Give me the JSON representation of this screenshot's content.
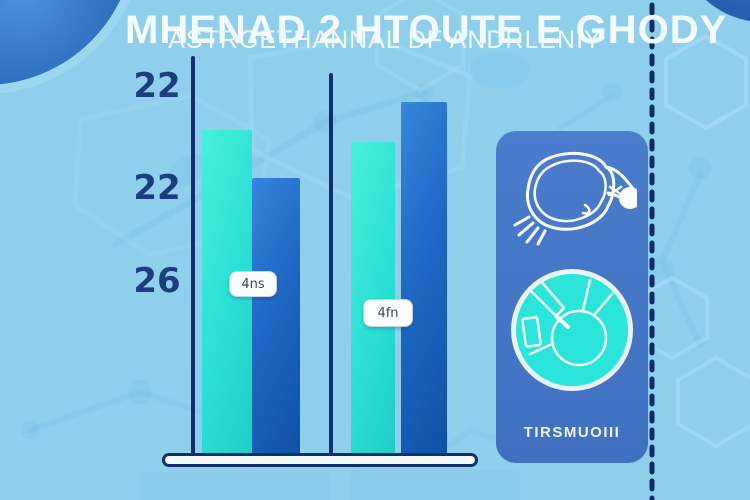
{
  "header": {
    "title": "MHENAD 2 HTOUTE E GHODY",
    "subtitle": "ASTRGETHANNAL DF ANDRLENIY"
  },
  "chart_data": {
    "type": "bar",
    "title": "MHENAD 2 HTOUTE E GHODY",
    "subtitle": "ASTRGETHANNAL DF ANDRLENIY",
    "xlabel": "",
    "ylabel": "",
    "ylim": [
      0,
      100
    ],
    "grid": false,
    "legend_position": "none",
    "y_tick_labels": [
      "22",
      "22",
      "26"
    ],
    "categories": [
      "4ns",
      "4fn"
    ],
    "series": [
      {
        "name": "teal",
        "values": [
          81,
          78
        ]
      },
      {
        "name": "blue",
        "values": [
          69,
          88
        ]
      }
    ],
    "note_units": "percent of y-axis height"
  },
  "panel": {
    "caption": "TIRSMUOIII",
    "icons": [
      "cell-outline-icon",
      "icsi-injection-icon"
    ]
  },
  "colors": {
    "background": "#8FCFEC",
    "axis_navy": "#13306B",
    "tick_navy": "#1D3E7E",
    "title_white": "#F4FBFE",
    "teal_bar_start": "#45F0DD",
    "teal_bar_end": "#1FCEC6",
    "blue_bar_start": "#3687DD",
    "blue_bar_end": "#0F51A9",
    "panel_blue": "#4677C8",
    "panel_circle_teal": "#2BE5DA",
    "sphere_blue": "#16417F"
  }
}
